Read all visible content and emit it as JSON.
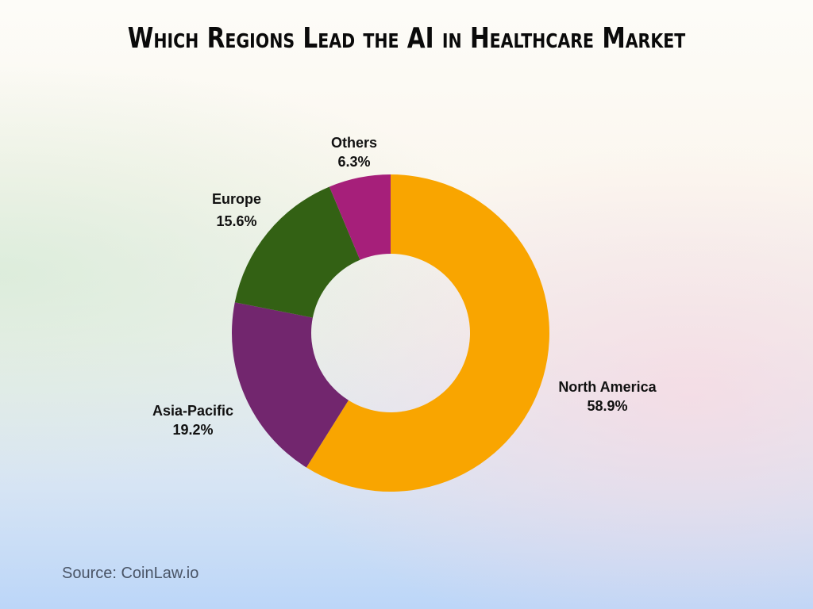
{
  "title": "Which Regions Lead the AI in Healthcare Market",
  "source": "Source: CoinLaw.io",
  "labels": {
    "north_america": {
      "name": "North America",
      "pct": "58.9%"
    },
    "asia_pacific": {
      "name": "Asia-Pacific",
      "pct": "19.2%"
    },
    "europe": {
      "name": "Europe",
      "pct": "15.6%"
    },
    "others": {
      "name": "Others",
      "pct": "6.3%"
    }
  },
  "chart_data": {
    "type": "pie",
    "title": "Which Regions Lead the AI in Healthcare Market",
    "subtype": "donut",
    "categories": [
      "North America",
      "Asia-Pacific",
      "Europe",
      "Others"
    ],
    "values": [
      58.9,
      19.2,
      15.6,
      6.3
    ],
    "unit": "%",
    "colors": [
      "#f9a500",
      "#72266e",
      "#336114",
      "#a61f7a"
    ],
    "start_angle": "top, clockwise",
    "legend": "none (direct labels)",
    "source": "CoinLaw.io"
  }
}
